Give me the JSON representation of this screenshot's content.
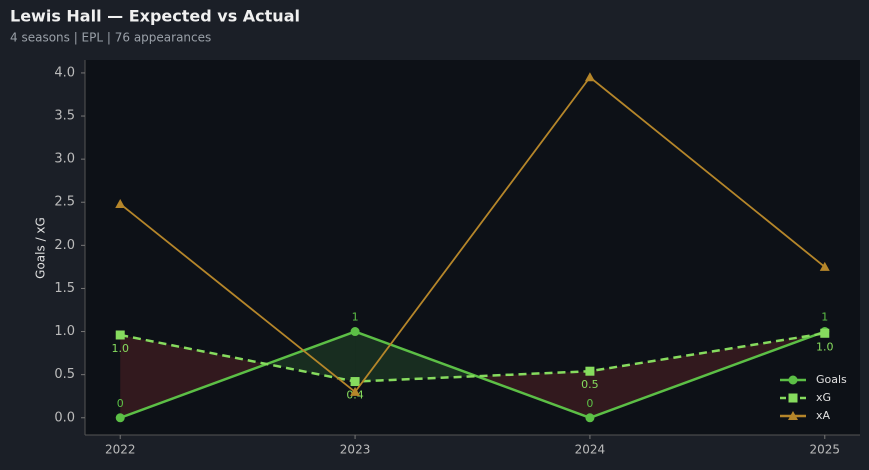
{
  "chart_data": {
    "type": "line",
    "title": "Lewis Hall — Expected vs Actual",
    "subtitle": "4 seasons | EPL | 76 appearances",
    "y_label": "Goals / xG",
    "x": [
      2022,
      2023,
      2024,
      2025
    ],
    "xlim": [
      2021.85,
      2025.15
    ],
    "xticks": [
      2022,
      2023,
      2024,
      2025
    ],
    "ylim": [
      -0.2,
      4.15
    ],
    "yticks": [
      {
        "value": 0,
        "label": "0.0"
      },
      {
        "value": 0.5,
        "label": "0.5"
      },
      {
        "value": 1,
        "label": "1.0"
      },
      {
        "value": 1.5,
        "label": "1.5"
      },
      {
        "value": 2,
        "label": "2.0"
      },
      {
        "value": 2.5,
        "label": "2.5"
      },
      {
        "value": 3,
        "label": "3.0"
      },
      {
        "value": 3.5,
        "label": "3.5"
      },
      {
        "value": 4,
        "label": "4.0"
      }
    ],
    "legend": "lower right",
    "series": [
      {
        "name": "Goals",
        "color": "#5cbf46",
        "values": [
          0,
          1,
          0,
          1
        ],
        "marker": "circle",
        "dash": false
      },
      {
        "name": "xG",
        "color": "#86db5e",
        "values": [
          0.96,
          0.42,
          0.54,
          0.98
        ],
        "value_labels": [
          "1.0",
          "0.4",
          "0.5",
          "1.0"
        ],
        "marker": "square",
        "dash": true
      },
      {
        "name": "xA",
        "color": "#b5862a",
        "values": [
          2.48,
          0.3,
          3.95,
          1.75
        ],
        "marker": "triangle",
        "dash": false
      }
    ]
  }
}
